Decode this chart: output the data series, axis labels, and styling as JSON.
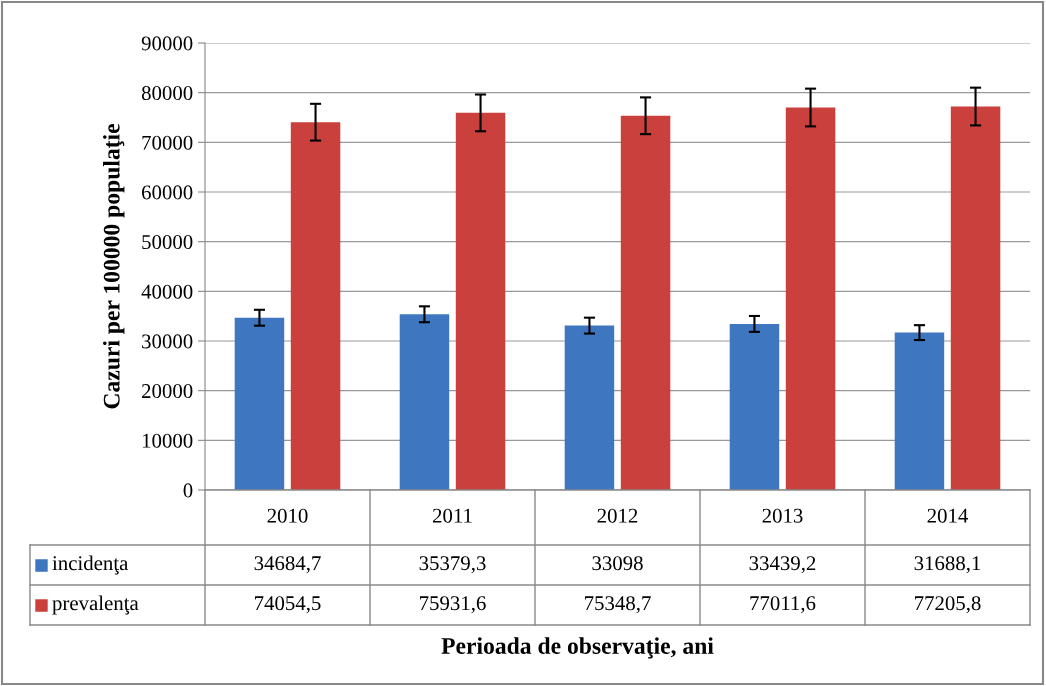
{
  "chart_data": {
    "type": "bar",
    "ylabel": "Cazuri per 100000 populaţie",
    "xlabel": "Perioada de observaţie, ani",
    "categories": [
      "2010",
      "2011",
      "2012",
      "2013",
      "2014"
    ],
    "series": [
      {
        "name": "incidenţa",
        "color": "#3f76c0",
        "values": [
          34684.7,
          35379.3,
          33098,
          33439.2,
          31688.1
        ],
        "errors": [
          1600,
          1600,
          1600,
          1600,
          1500
        ],
        "value_labels": [
          "34684,7",
          "35379,3",
          "33098",
          "33439,2",
          "31688,1"
        ]
      },
      {
        "name": "prevalenţa",
        "color": "#c9403c",
        "values": [
          74054.5,
          75931.6,
          75348.7,
          77011.6,
          77205.8
        ],
        "errors": [
          3700,
          3700,
          3700,
          3800,
          3800
        ],
        "value_labels": [
          "74054,5",
          "75931,6",
          "75348,7",
          "77011,6",
          "77205,8"
        ]
      }
    ],
    "ylim": [
      0,
      90000
    ],
    "yticks": [
      0,
      10000,
      20000,
      30000,
      40000,
      50000,
      60000,
      70000,
      80000,
      90000
    ],
    "grid": "y",
    "legend": "bottom"
  }
}
